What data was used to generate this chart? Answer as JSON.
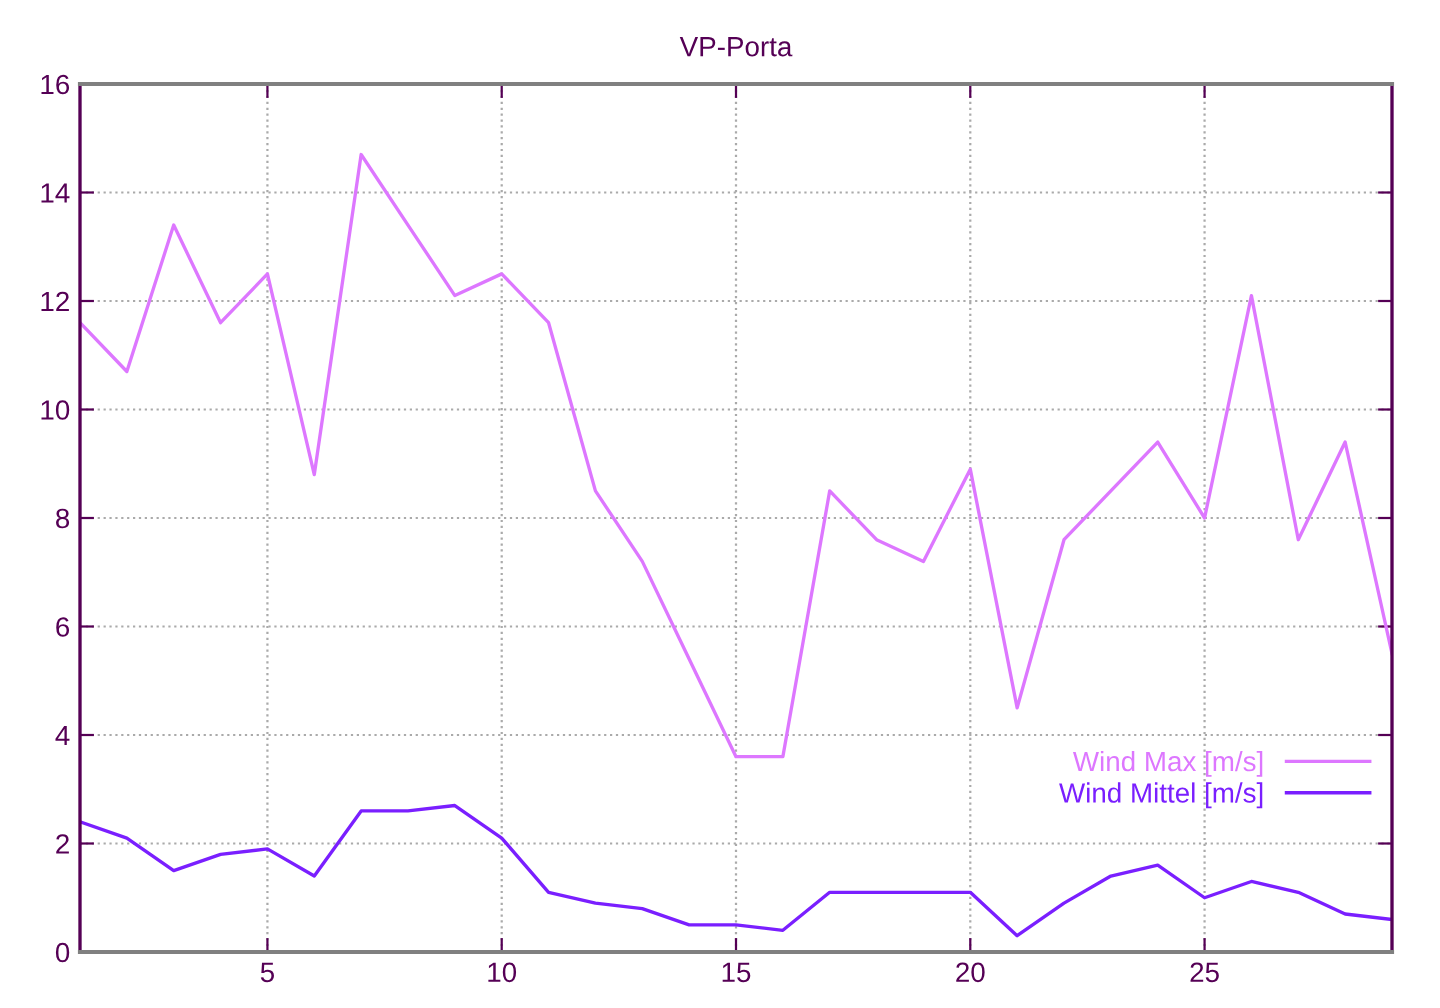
{
  "chart_data": {
    "type": "line",
    "title": "VP-Porta",
    "x": [
      1,
      2,
      3,
      4,
      5,
      6,
      7,
      8,
      9,
      10,
      11,
      12,
      13,
      14,
      15,
      16,
      17,
      18,
      19,
      20,
      21,
      22,
      23,
      24,
      25,
      26,
      27,
      28,
      29
    ],
    "series": [
      {
        "name": "Wind Max [m/s]",
        "color": "#dd77ff",
        "values": [
          11.6,
          10.7,
          13.4,
          11.6,
          12.5,
          8.8,
          14.7,
          13.4,
          12.1,
          12.5,
          11.6,
          8.5,
          7.2,
          5.4,
          3.6,
          3.6,
          8.5,
          7.6,
          7.2,
          8.9,
          4.5,
          7.6,
          8.5,
          9.4,
          8.0,
          12.1,
          7.6,
          9.4,
          5.5
        ]
      },
      {
        "name": "Wind Mittel [m/s]",
        "color": "#7a1fff",
        "values": [
          2.4,
          2.1,
          1.5,
          1.8,
          1.9,
          1.4,
          2.6,
          2.6,
          2.7,
          2.1,
          1.1,
          0.9,
          0.8,
          0.5,
          0.5,
          0.4,
          1.1,
          1.1,
          1.1,
          1.1,
          0.3,
          0.9,
          1.4,
          1.6,
          1.0,
          1.3,
          1.1,
          0.7,
          0.6
        ]
      }
    ],
    "xlim": [
      1,
      29
    ],
    "xticks": [
      5,
      10,
      15,
      20,
      25
    ],
    "ylim": [
      0,
      16
    ],
    "yticks": [
      0,
      2,
      4,
      6,
      8,
      10,
      12,
      14,
      16
    ],
    "grid": true,
    "legend": "bottom right",
    "line_style": "solid",
    "marker": "none"
  }
}
